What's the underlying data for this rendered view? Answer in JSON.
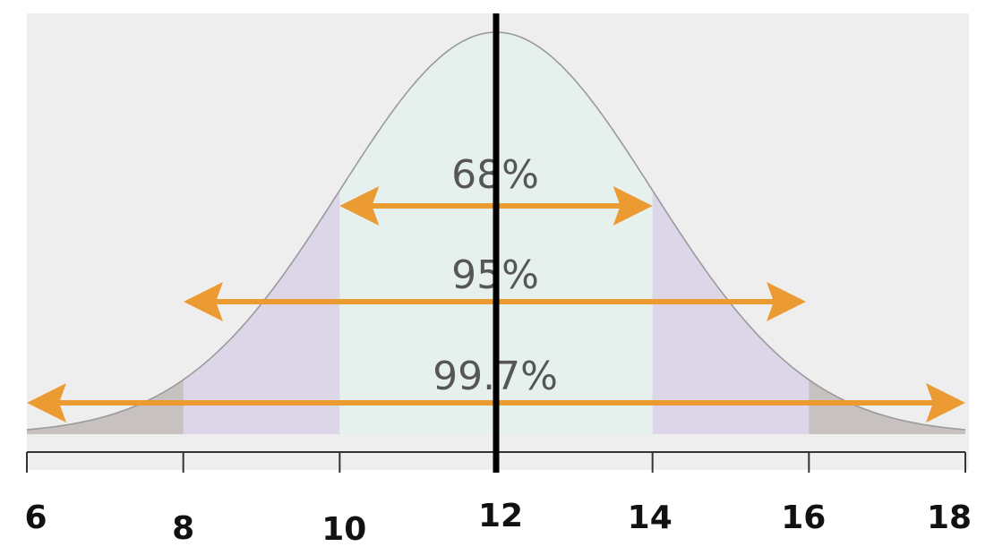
{
  "chart_data": {
    "type": "area",
    "distribution": "normal",
    "mean": 12,
    "sd": 2,
    "x_range": [
      6,
      18
    ],
    "ticks": [
      "6",
      "8",
      "10",
      "12",
      "14",
      "16",
      "18"
    ],
    "bands": [
      {
        "label": "68%",
        "lower": 10,
        "upper": 14
      },
      {
        "label": "95%",
        "lower": 8,
        "upper": 16
      },
      {
        "label": "99.7%",
        "lower": 6,
        "upper": 18
      }
    ],
    "mean_line_at": 12
  },
  "colors": {
    "background_panel": "#eeeeee",
    "band_68": "#e6f0ec",
    "band_95": "#ddd6e9",
    "band_997": "#c7c2bf",
    "curve": "#9a9a9a",
    "arrow": "#ec9a32",
    "mean_line": "#000000",
    "axis": "#333333"
  }
}
